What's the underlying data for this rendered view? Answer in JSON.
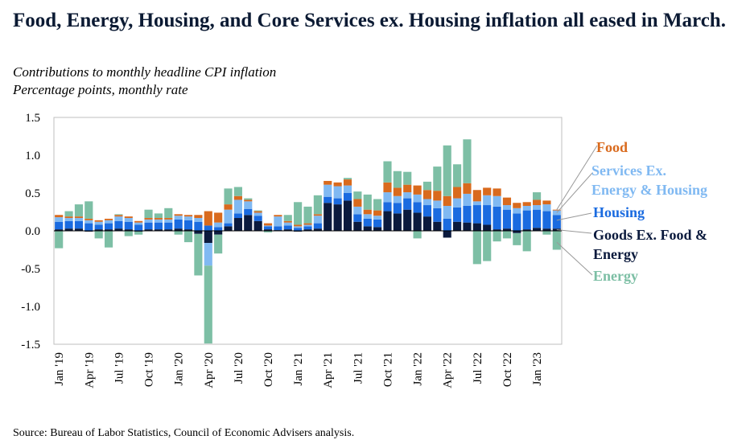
{
  "title": "Food, Energy, Housing, and Core Services ex. Housing inflation all eased in March.",
  "subtitle1": "Contributions to monthly headline CPI inflation",
  "subtitle2": "Percentage points, monthly rate",
  "source": "Source: Bureau of Labor Statistics, Council of Economic Advisers analysis.",
  "colors": {
    "goods": "#0b1a3d",
    "housing": "#1a6be0",
    "services": "#80b9f2",
    "food": "#d96a1d",
    "energy": "#7dbfa5"
  },
  "chart_data": {
    "type": "bar",
    "stacked": true,
    "ylim": [
      -1.5,
      1.5
    ],
    "yticks": [
      "1.5",
      "1.0",
      "0.5",
      "0.0",
      "-0.5",
      "-1.0",
      "-1.5"
    ],
    "ytick_values": [
      1.5,
      1.0,
      0.5,
      0.0,
      -0.5,
      -1.0,
      -1.5
    ],
    "xtick_labels": [
      "Jan '19",
      "Apr '19",
      "Jul '19",
      "Oct '19",
      "Jan '20",
      "Apr '20",
      "Jul '20",
      "Oct '20",
      "Jan '21",
      "Apr '21",
      "Jul '21",
      "Oct '21",
      "Jan '22",
      "Apr '22",
      "Jul '22",
      "Oct '22",
      "Jan '23"
    ],
    "categories": [
      "Jan '19",
      "Feb '19",
      "Mar '19",
      "Apr '19",
      "May '19",
      "Jun '19",
      "Jul '19",
      "Aug '19",
      "Sep '19",
      "Oct '19",
      "Nov '19",
      "Dec '19",
      "Jan '20",
      "Feb '20",
      "Mar '20",
      "Apr '20",
      "May '20",
      "Jun '20",
      "Jul '20",
      "Aug '20",
      "Sep '20",
      "Oct '20",
      "Nov '20",
      "Dec '20",
      "Jan '21",
      "Feb '21",
      "Mar '21",
      "Apr '21",
      "May '21",
      "Jun '21",
      "Jul '21",
      "Aug '21",
      "Sep '21",
      "Oct '21",
      "Nov '21",
      "Dec '21",
      "Jan '22",
      "Feb '22",
      "Mar '22",
      "Apr '22",
      "May '22",
      "Jun '22",
      "Jul '22",
      "Aug '22",
      "Sep '22",
      "Oct '22",
      "Nov '22",
      "Dec '22",
      "Jan '23",
      "Feb '23",
      "Mar '23"
    ],
    "legend": [
      {
        "key": "food",
        "label_lines": [
          "Food"
        ]
      },
      {
        "key": "services",
        "label_lines": [
          "Services Ex.",
          "Energy & Housing"
        ]
      },
      {
        "key": "housing",
        "label_lines": [
          "Housing"
        ]
      },
      {
        "key": "goods",
        "label_lines": [
          "Goods Ex. Food &",
          "Energy"
        ]
      },
      {
        "key": "energy",
        "label_lines": [
          "Energy"
        ]
      }
    ],
    "series": [
      {
        "key": "goods",
        "name": "Goods Ex. Food & Energy",
        "values": [
          0.02,
          0.03,
          0.03,
          -0.01,
          0.02,
          0.02,
          0.03,
          0.02,
          -0.01,
          0.02,
          0.02,
          0.02,
          0.03,
          0.02,
          -0.04,
          -0.16,
          -0.05,
          0.06,
          0.17,
          0.21,
          0.13,
          0.02,
          0.01,
          0.02,
          -0.01,
          0.02,
          0.03,
          0.37,
          0.35,
          0.4,
          0.12,
          0.06,
          0.05,
          0.26,
          0.23,
          0.28,
          0.24,
          0.19,
          0.12,
          -0.09,
          0.12,
          0.11,
          0.1,
          0.08,
          0.02,
          0.03,
          -0.03,
          0.02,
          0.04,
          0.03,
          0.03
        ]
      },
      {
        "key": "housing",
        "name": "Housing",
        "values": [
          0.1,
          0.1,
          0.1,
          0.1,
          0.06,
          0.08,
          0.1,
          0.1,
          0.08,
          0.09,
          0.09,
          0.09,
          0.12,
          0.12,
          0.12,
          0.07,
          0.05,
          0.04,
          0.06,
          0.08,
          0.07,
          0.04,
          0.05,
          0.05,
          0.04,
          0.04,
          0.07,
          0.08,
          0.08,
          0.1,
          0.1,
          0.1,
          0.1,
          0.12,
          0.14,
          0.15,
          0.14,
          0.15,
          0.18,
          0.16,
          0.19,
          0.22,
          0.24,
          0.26,
          0.3,
          0.25,
          0.23,
          0.25,
          0.24,
          0.23,
          0.18
        ]
      },
      {
        "key": "services",
        "name": "Services Ex. Energy & Housing",
        "values": [
          0.06,
          0.04,
          0.04,
          0.04,
          0.04,
          0.04,
          0.06,
          0.05,
          0.03,
          0.04,
          0.04,
          0.04,
          0.05,
          0.05,
          0.05,
          -0.3,
          0.06,
          0.18,
          0.18,
          0.1,
          0.04,
          0.01,
          0.13,
          0.04,
          0.02,
          0.02,
          0.1,
          0.16,
          0.16,
          0.1,
          0.1,
          0.06,
          0.05,
          0.13,
          0.09,
          0.08,
          0.1,
          0.08,
          0.1,
          0.17,
          0.12,
          0.16,
          0.05,
          0.13,
          0.14,
          0.06,
          0.07,
          0.06,
          0.06,
          0.09,
          0.06
        ]
      },
      {
        "key": "food",
        "name": "Food",
        "values": [
          0.03,
          0.02,
          0.02,
          0.02,
          0.02,
          0.02,
          0.02,
          0.02,
          0.02,
          0.02,
          0.02,
          0.02,
          0.02,
          0.02,
          0.04,
          0.19,
          0.13,
          0.07,
          0.05,
          0.02,
          0.02,
          0.03,
          0.02,
          0.02,
          0.02,
          0.02,
          0.02,
          0.05,
          0.05,
          0.08,
          0.1,
          0.06,
          0.07,
          0.13,
          0.11,
          0.1,
          0.12,
          0.12,
          0.13,
          0.13,
          0.15,
          0.14,
          0.15,
          0.1,
          0.1,
          0.1,
          0.07,
          0.05,
          0.07,
          0.05,
          0.01
        ]
      },
      {
        "key": "energy",
        "name": "Energy",
        "values": [
          -0.23,
          0.07,
          0.16,
          0.23,
          -0.1,
          -0.22,
          0.01,
          -0.07,
          -0.04,
          0.11,
          0.06,
          0.13,
          -0.05,
          -0.15,
          -0.55,
          -1.03,
          -0.25,
          0.21,
          0.12,
          0.02,
          0.01,
          -0.02,
          0.0,
          0.08,
          0.3,
          0.22,
          0.25,
          0.0,
          0.0,
          0.02,
          0.1,
          0.2,
          0.15,
          0.28,
          0.22,
          0.17,
          -0.1,
          0.11,
          0.32,
          0.67,
          0.3,
          0.58,
          -0.44,
          -0.4,
          -0.14,
          -0.1,
          -0.16,
          -0.27,
          0.1,
          -0.05,
          -0.25
        ]
      }
    ]
  }
}
